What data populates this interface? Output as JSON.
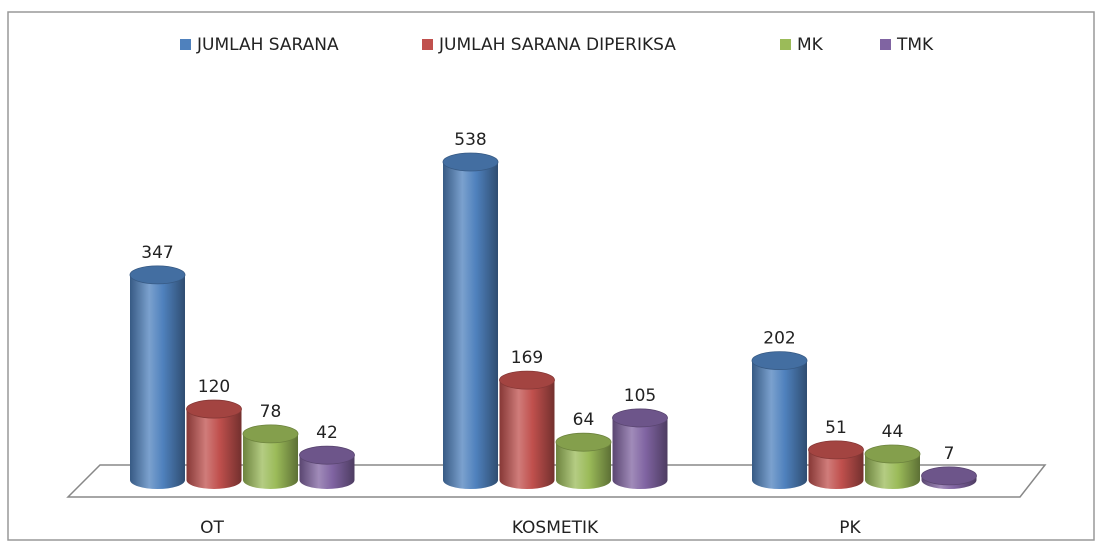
{
  "chart_data": {
    "type": "bar3d",
    "categories": [
      "OT",
      "KOSMETIK",
      "PK"
    ],
    "series": [
      {
        "name": "JUMLAH SARANA",
        "color": "#4f81bd",
        "values": [
          347,
          538,
          202
        ]
      },
      {
        "name": "JUMLAH SARANA DIPERIKSA",
        "color": "#c0504d",
        "values": [
          120,
          169,
          51
        ]
      },
      {
        "name": "MK",
        "color": "#9bbb59",
        "values": [
          78,
          64,
          44
        ]
      },
      {
        "name": "TMK",
        "color": "#8064a2",
        "values": [
          42,
          105,
          7
        ]
      }
    ],
    "legend": "top"
  }
}
